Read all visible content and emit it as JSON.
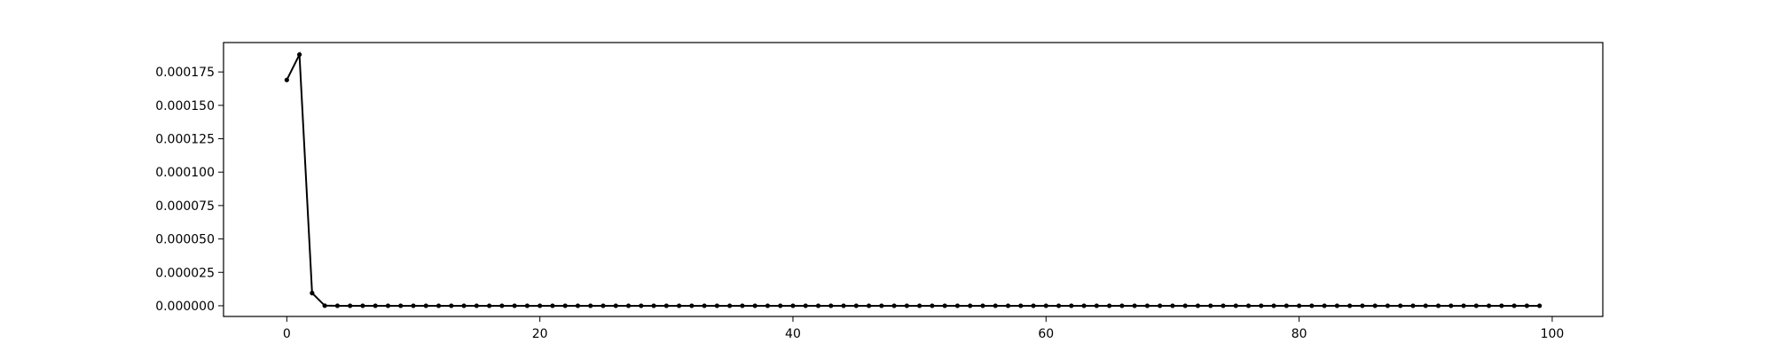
{
  "chart_data": {
    "type": "line",
    "title": "",
    "xlabel": "",
    "ylabel": "",
    "xlim": [
      -5,
      104
    ],
    "ylim": [
      -8e-06,
      0.000197
    ],
    "xticks": [
      0,
      20,
      40,
      60,
      80,
      100
    ],
    "xtick_labels": [
      "0",
      "20",
      "40",
      "60",
      "80",
      "100"
    ],
    "yticks": [
      0,
      2.5e-05,
      5e-05,
      7.5e-05,
      0.0001,
      0.000125,
      0.00015,
      0.000175
    ],
    "ytick_labels": [
      "0.000000",
      "0.000025",
      "0.000050",
      "0.000075",
      "0.000100",
      "0.000125",
      "0.000150",
      "0.000175"
    ],
    "grid": false,
    "series": [
      {
        "name": "values",
        "color": "#000000",
        "marker": "dot",
        "x": [
          0,
          1,
          2,
          3,
          4,
          5,
          6,
          7,
          8,
          9,
          10,
          11,
          12,
          13,
          14,
          15,
          16,
          17,
          18,
          19,
          20,
          21,
          22,
          23,
          24,
          25,
          26,
          27,
          28,
          29,
          30,
          31,
          32,
          33,
          34,
          35,
          36,
          37,
          38,
          39,
          40,
          41,
          42,
          43,
          44,
          45,
          46,
          47,
          48,
          49,
          50,
          51,
          52,
          53,
          54,
          55,
          56,
          57,
          58,
          59,
          60,
          61,
          62,
          63,
          64,
          65,
          66,
          67,
          68,
          69,
          70,
          71,
          72,
          73,
          74,
          75,
          76,
          77,
          78,
          79,
          80,
          81,
          82,
          83,
          84,
          85,
          86,
          87,
          88,
          89,
          90,
          91,
          92,
          93,
          94,
          95,
          96,
          97,
          98,
          99
        ],
        "y": [
          0.000169,
          0.000188,
          9.5e-06,
          1e-07,
          0,
          0,
          0,
          0,
          0,
          0,
          0,
          0,
          0,
          0,
          0,
          0,
          0,
          0,
          0,
          0,
          0,
          0,
          0,
          0,
          0,
          0,
          0,
          0,
          0,
          0,
          0,
          0,
          0,
          0,
          0,
          0,
          0,
          0,
          0,
          0,
          0,
          0,
          0,
          0,
          0,
          0,
          0,
          0,
          0,
          0,
          0,
          0,
          0,
          0,
          0,
          0,
          0,
          0,
          0,
          0,
          0,
          0,
          0,
          0,
          0,
          0,
          0,
          0,
          0,
          0,
          0,
          0,
          0,
          0,
          0,
          0,
          0,
          0,
          0,
          0,
          0,
          0,
          0,
          0,
          0,
          0,
          0,
          0,
          0,
          0,
          0,
          0,
          0,
          0,
          0,
          0,
          0,
          0,
          0,
          0
        ]
      }
    ]
  }
}
